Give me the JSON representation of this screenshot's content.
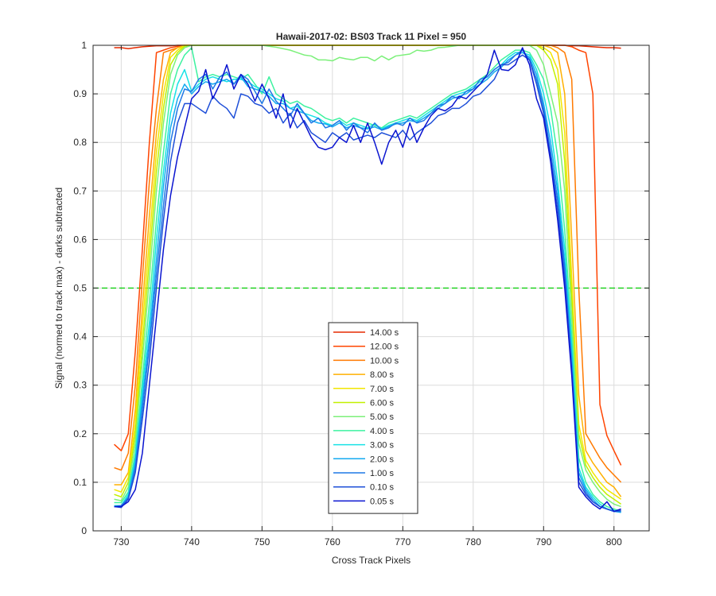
{
  "chart_data": {
    "type": "line",
    "title": "Hawaii-2017-02: BS03  Track 11 Pixel = 950",
    "xlabel": "Cross Track Pixels",
    "ylabel": "Signal (normed to track max) - darks subtracted",
    "xlim": [
      726,
      805
    ],
    "ylim": [
      0,
      1
    ],
    "xticks": [
      730,
      740,
      750,
      760,
      770,
      780,
      790,
      800
    ],
    "yticks": [
      0,
      0.1,
      0.2,
      0.3,
      0.4,
      0.5,
      0.6,
      0.7,
      0.8,
      0.9,
      1
    ],
    "grid": true,
    "legend_position": "lower-center",
    "reference_line": {
      "y": 0.5,
      "style": "dashed",
      "color": "#00cc00"
    },
    "x": [
      729,
      730,
      731,
      732,
      733,
      734,
      735,
      736,
      737,
      738,
      739,
      740,
      741,
      742,
      743,
      744,
      745,
      746,
      747,
      748,
      749,
      750,
      751,
      752,
      753,
      754,
      755,
      756,
      757,
      758,
      759,
      760,
      761,
      762,
      763,
      764,
      765,
      766,
      767,
      768,
      769,
      770,
      771,
      772,
      773,
      774,
      775,
      776,
      777,
      778,
      779,
      780,
      781,
      782,
      783,
      784,
      785,
      786,
      787,
      788,
      789,
      790,
      791,
      792,
      793,
      794,
      795,
      796,
      797,
      798,
      799,
      800,
      801
    ],
    "series": [
      {
        "name": "14.00 s",
        "color": "#e62a00",
        "values": [
          0.995,
          0.995,
          0.993,
          0.995,
          0.997,
          0.998,
          0.999,
          0.999,
          0.999,
          1.0,
          1.0,
          1.0,
          1.0,
          1.0,
          1.0,
          1.0,
          1.0,
          1.0,
          1.0,
          1.0,
          1.0,
          1.0,
          1.0,
          1.0,
          1.0,
          1.0,
          1.0,
          1.0,
          1.0,
          1.0,
          1.0,
          1.0,
          1.0,
          1.0,
          1.0,
          1.0,
          1.0,
          1.0,
          1.0,
          1.0,
          1.0,
          1.0,
          1.0,
          1.0,
          1.0,
          1.0,
          1.0,
          1.0,
          1.0,
          1.0,
          1.0,
          1.0,
          1.0,
          1.0,
          1.0,
          1.0,
          1.0,
          1.0,
          1.0,
          1.0,
          1.0,
          1.0,
          1.0,
          1.0,
          1.0,
          0.999,
          0.999,
          0.998,
          0.997,
          0.996,
          0.995,
          0.995,
          0.994
        ]
      },
      {
        "name": "12.00 s",
        "color": "#ff4400",
        "values": [
          0.178,
          0.165,
          0.2,
          0.37,
          0.58,
          0.8,
          0.985,
          0.99,
          0.995,
          0.998,
          1.0,
          1.0,
          1.0,
          1.0,
          1.0,
          1.0,
          1.0,
          1.0,
          1.0,
          1.0,
          1.0,
          1.0,
          1.0,
          1.0,
          1.0,
          1.0,
          1.0,
          1.0,
          1.0,
          1.0,
          1.0,
          1.0,
          1.0,
          1.0,
          1.0,
          1.0,
          1.0,
          1.0,
          1.0,
          1.0,
          1.0,
          1.0,
          1.0,
          1.0,
          1.0,
          1.0,
          1.0,
          1.0,
          1.0,
          1.0,
          1.0,
          1.0,
          1.0,
          1.0,
          1.0,
          1.0,
          1.0,
          1.0,
          1.0,
          1.0,
          1.0,
          1.0,
          1.0,
          1.0,
          1.0,
          0.997,
          0.99,
          0.985,
          0.9,
          0.26,
          0.196,
          0.165,
          0.135
        ]
      },
      {
        "name": "10.00 s",
        "color": "#ff7a00",
        "values": [
          0.13,
          0.125,
          0.16,
          0.3,
          0.52,
          0.72,
          0.87,
          0.985,
          0.99,
          0.995,
          1.0,
          1.0,
          1.0,
          1.0,
          1.0,
          1.0,
          1.0,
          1.0,
          1.0,
          1.0,
          1.0,
          1.0,
          1.0,
          1.0,
          1.0,
          1.0,
          1.0,
          1.0,
          1.0,
          1.0,
          1.0,
          1.0,
          1.0,
          1.0,
          1.0,
          1.0,
          1.0,
          1.0,
          1.0,
          1.0,
          1.0,
          1.0,
          1.0,
          1.0,
          1.0,
          1.0,
          1.0,
          1.0,
          1.0,
          1.0,
          1.0,
          1.0,
          1.0,
          1.0,
          1.0,
          1.0,
          1.0,
          1.0,
          1.0,
          1.0,
          1.0,
          1.0,
          1.0,
          0.995,
          0.985,
          0.93,
          0.5,
          0.2,
          0.175,
          0.15,
          0.13,
          0.115,
          0.1
        ]
      },
      {
        "name": "8.00 s",
        "color": "#ffb000",
        "values": [
          0.095,
          0.095,
          0.12,
          0.25,
          0.46,
          0.65,
          0.82,
          0.93,
          0.985,
          0.995,
          1.0,
          1.0,
          1.0,
          1.0,
          1.0,
          1.0,
          1.0,
          1.0,
          1.0,
          1.0,
          1.0,
          1.0,
          1.0,
          1.0,
          1.0,
          1.0,
          1.0,
          1.0,
          1.0,
          1.0,
          1.0,
          1.0,
          1.0,
          1.0,
          1.0,
          1.0,
          1.0,
          1.0,
          1.0,
          1.0,
          1.0,
          1.0,
          1.0,
          1.0,
          1.0,
          1.0,
          1.0,
          1.0,
          1.0,
          1.0,
          1.0,
          1.0,
          1.0,
          1.0,
          1.0,
          1.0,
          1.0,
          1.0,
          1.0,
          1.0,
          1.0,
          1.0,
          0.995,
          0.985,
          0.9,
          0.6,
          0.28,
          0.165,
          0.14,
          0.12,
          0.1,
          0.09,
          0.07
        ]
      },
      {
        "name": "7.00 s",
        "color": "#f2e600",
        "values": [
          0.085,
          0.08,
          0.11,
          0.22,
          0.42,
          0.6,
          0.78,
          0.9,
          0.975,
          0.99,
          1.0,
          1.0,
          1.0,
          1.0,
          1.0,
          1.0,
          1.0,
          1.0,
          1.0,
          1.0,
          1.0,
          1.0,
          1.0,
          1.0,
          1.0,
          1.0,
          1.0,
          1.0,
          1.0,
          1.0,
          1.0,
          1.0,
          1.0,
          1.0,
          1.0,
          1.0,
          1.0,
          1.0,
          1.0,
          1.0,
          1.0,
          1.0,
          1.0,
          1.0,
          1.0,
          1.0,
          1.0,
          1.0,
          1.0,
          1.0,
          1.0,
          1.0,
          1.0,
          1.0,
          1.0,
          1.0,
          1.0,
          1.0,
          1.0,
          1.0,
          1.0,
          0.995,
          0.985,
          0.95,
          0.82,
          0.52,
          0.22,
          0.145,
          0.12,
          0.1,
          0.085,
          0.075,
          0.065
        ]
      },
      {
        "name": "6.00 s",
        "color": "#c2f000",
        "values": [
          0.075,
          0.07,
          0.1,
          0.2,
          0.38,
          0.56,
          0.74,
          0.87,
          0.96,
          0.985,
          0.998,
          1.0,
          1.0,
          1.0,
          1.0,
          1.0,
          1.0,
          1.0,
          1.0,
          1.0,
          1.0,
          1.0,
          1.0,
          1.0,
          1.0,
          1.0,
          1.0,
          1.0,
          1.0,
          1.0,
          1.0,
          1.0,
          1.0,
          1.0,
          1.0,
          1.0,
          1.0,
          1.0,
          1.0,
          1.0,
          1.0,
          1.0,
          1.0,
          1.0,
          1.0,
          1.0,
          1.0,
          1.0,
          1.0,
          1.0,
          1.0,
          1.0,
          1.0,
          1.0,
          1.0,
          1.0,
          1.0,
          1.0,
          1.0,
          1.0,
          1.0,
          0.99,
          0.97,
          0.92,
          0.76,
          0.48,
          0.2,
          0.135,
          0.11,
          0.09,
          0.075,
          0.065,
          0.055
        ]
      },
      {
        "name": "5.00 s",
        "color": "#7cf07a",
        "values": [
          0.065,
          0.062,
          0.09,
          0.18,
          0.35,
          0.52,
          0.7,
          0.84,
          0.94,
          0.98,
          0.995,
          1.0,
          1.0,
          1.0,
          1.0,
          1.0,
          1.0,
          1.0,
          1.0,
          1.0,
          1.0,
          1.0,
          0.998,
          0.996,
          0.993,
          0.99,
          0.985,
          0.98,
          0.978,
          0.97,
          0.97,
          0.968,
          0.975,
          0.972,
          0.97,
          0.975,
          0.975,
          0.968,
          0.978,
          0.97,
          0.978,
          0.98,
          0.982,
          0.99,
          0.988,
          0.99,
          0.995,
          0.996,
          0.998,
          1.0,
          1.0,
          1.0,
          1.0,
          1.0,
          1.0,
          1.0,
          1.0,
          1.0,
          1.0,
          1.0,
          0.99,
          0.96,
          0.9,
          0.84,
          0.7,
          0.44,
          0.18,
          0.125,
          0.1,
          0.08,
          0.065,
          0.055,
          0.05
        ]
      },
      {
        "name": "4.00 s",
        "color": "#3df2a0",
        "values": [
          0.058,
          0.058,
          0.08,
          0.16,
          0.31,
          0.47,
          0.64,
          0.78,
          0.9,
          0.95,
          0.98,
          0.995,
          0.925,
          0.935,
          0.94,
          0.935,
          0.94,
          0.935,
          0.93,
          0.94,
          0.92,
          0.9,
          0.935,
          0.9,
          0.89,
          0.88,
          0.885,
          0.875,
          0.87,
          0.86,
          0.85,
          0.845,
          0.85,
          0.84,
          0.85,
          0.845,
          0.84,
          0.835,
          0.83,
          0.84,
          0.845,
          0.85,
          0.855,
          0.85,
          0.86,
          0.87,
          0.88,
          0.89,
          0.9,
          0.905,
          0.91,
          0.92,
          0.93,
          0.94,
          0.955,
          0.97,
          0.98,
          0.99,
          0.99,
          0.985,
          0.96,
          0.93,
          0.87,
          0.77,
          0.62,
          0.4,
          0.15,
          0.1,
          0.075,
          0.06,
          0.05,
          0.045,
          0.04
        ]
      },
      {
        "name": "3.00 s",
        "color": "#17e2e5",
        "values": [
          0.052,
          0.052,
          0.075,
          0.15,
          0.29,
          0.43,
          0.6,
          0.74,
          0.86,
          0.92,
          0.95,
          0.905,
          0.92,
          0.93,
          0.935,
          0.93,
          0.925,
          0.93,
          0.93,
          0.925,
          0.915,
          0.91,
          0.9,
          0.89,
          0.885,
          0.87,
          0.875,
          0.86,
          0.855,
          0.85,
          0.84,
          0.835,
          0.845,
          0.835,
          0.84,
          0.835,
          0.83,
          0.838,
          0.828,
          0.835,
          0.84,
          0.845,
          0.85,
          0.845,
          0.855,
          0.865,
          0.875,
          0.885,
          0.895,
          0.9,
          0.905,
          0.915,
          0.925,
          0.935,
          0.95,
          0.96,
          0.975,
          0.985,
          0.985,
          0.98,
          0.95,
          0.9,
          0.83,
          0.72,
          0.58,
          0.38,
          0.13,
          0.09,
          0.07,
          0.055,
          0.045,
          0.042,
          0.038
        ]
      },
      {
        "name": "2.00 s",
        "color": "#14aaf0",
        "values": [
          0.05,
          0.05,
          0.07,
          0.14,
          0.27,
          0.4,
          0.56,
          0.71,
          0.83,
          0.89,
          0.92,
          0.9,
          0.915,
          0.925,
          0.92,
          0.925,
          0.93,
          0.92,
          0.935,
          0.915,
          0.91,
          0.905,
          0.895,
          0.88,
          0.88,
          0.87,
          0.865,
          0.86,
          0.845,
          0.84,
          0.838,
          0.832,
          0.84,
          0.83,
          0.835,
          0.83,
          0.828,
          0.832,
          0.826,
          0.833,
          0.838,
          0.84,
          0.845,
          0.842,
          0.85,
          0.86,
          0.87,
          0.88,
          0.89,
          0.895,
          0.9,
          0.91,
          0.92,
          0.93,
          0.945,
          0.955,
          0.97,
          0.98,
          0.985,
          0.975,
          0.94,
          0.88,
          0.8,
          0.7,
          0.55,
          0.36,
          0.12,
          0.085,
          0.065,
          0.05,
          0.045,
          0.04,
          0.038
        ]
      },
      {
        "name": "1.00 s",
        "color": "#1f78e6",
        "values": [
          0.05,
          0.052,
          0.068,
          0.13,
          0.25,
          0.38,
          0.53,
          0.67,
          0.8,
          0.87,
          0.91,
          0.905,
          0.93,
          0.94,
          0.91,
          0.935,
          0.945,
          0.92,
          0.94,
          0.93,
          0.905,
          0.88,
          0.91,
          0.885,
          0.87,
          0.855,
          0.88,
          0.86,
          0.84,
          0.85,
          0.83,
          0.835,
          0.845,
          0.825,
          0.84,
          0.83,
          0.82,
          0.84,
          0.825,
          0.83,
          0.84,
          0.835,
          0.85,
          0.84,
          0.845,
          0.86,
          0.875,
          0.88,
          0.895,
          0.89,
          0.905,
          0.91,
          0.93,
          0.935,
          0.95,
          0.96,
          0.965,
          0.98,
          0.99,
          0.97,
          0.93,
          0.87,
          0.78,
          0.68,
          0.54,
          0.34,
          0.11,
          0.08,
          0.06,
          0.05,
          0.045,
          0.04,
          0.04
        ]
      },
      {
        "name": "0.10 s",
        "color": "#1e4fd8",
        "values": [
          0.05,
          0.048,
          0.065,
          0.12,
          0.23,
          0.35,
          0.5,
          0.64,
          0.76,
          0.84,
          0.88,
          0.88,
          0.87,
          0.86,
          0.895,
          0.88,
          0.87,
          0.85,
          0.9,
          0.895,
          0.88,
          0.875,
          0.86,
          0.87,
          0.84,
          0.86,
          0.83,
          0.845,
          0.82,
          0.81,
          0.8,
          0.82,
          0.81,
          0.82,
          0.805,
          0.81,
          0.815,
          0.81,
          0.82,
          0.815,
          0.81,
          0.825,
          0.805,
          0.82,
          0.83,
          0.84,
          0.855,
          0.86,
          0.87,
          0.87,
          0.88,
          0.895,
          0.9,
          0.915,
          0.93,
          0.96,
          0.96,
          0.97,
          0.98,
          0.97,
          0.92,
          0.86,
          0.77,
          0.66,
          0.52,
          0.33,
          0.1,
          0.075,
          0.06,
          0.05,
          0.045,
          0.04,
          0.042
        ]
      },
      {
        "name": "0.05 s",
        "color": "#0a14d0",
        "values": [
          0.05,
          0.05,
          0.06,
          0.085,
          0.16,
          0.3,
          0.44,
          0.58,
          0.69,
          0.77,
          0.83,
          0.89,
          0.905,
          0.95,
          0.89,
          0.92,
          0.96,
          0.91,
          0.94,
          0.92,
          0.885,
          0.92,
          0.89,
          0.85,
          0.9,
          0.83,
          0.87,
          0.84,
          0.81,
          0.79,
          0.785,
          0.79,
          0.81,
          0.8,
          0.835,
          0.8,
          0.84,
          0.8,
          0.755,
          0.8,
          0.825,
          0.79,
          0.84,
          0.8,
          0.83,
          0.855,
          0.87,
          0.865,
          0.875,
          0.895,
          0.89,
          0.905,
          0.92,
          0.94,
          0.99,
          0.95,
          0.948,
          0.96,
          0.995,
          0.96,
          0.89,
          0.85,
          0.76,
          0.64,
          0.5,
          0.32,
          0.09,
          0.07,
          0.055,
          0.045,
          0.06,
          0.04,
          0.045
        ]
      }
    ]
  }
}
